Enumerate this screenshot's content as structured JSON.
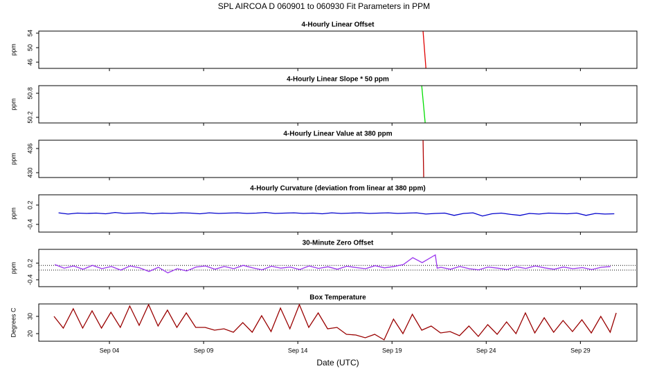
{
  "title": "SPL   AIRCOA D   060901 to 060930   Fit Parameters in PPM",
  "x_label": "Date (UTC)",
  "chart_data": [
    {
      "type": "line",
      "title": "4-Hourly Linear Offset",
      "y_label": "ppm",
      "xlim": [
        0.25,
        32.0
      ],
      "ylim": [
        44.29,
        54.57
      ],
      "yticks": [
        46,
        50,
        54
      ],
      "series": [
        {
          "color": "#e00000",
          "x": [
            20.65,
            20.8
          ],
          "values": [
            54.5,
            44.4
          ]
        }
      ]
    },
    {
      "type": "line",
      "title": "4-Hourly Linear Slope * 50 ppm",
      "y_label": "ppm",
      "xlim": [
        0.25,
        32.0
      ],
      "ylim": [
        50.06,
        50.99
      ],
      "yticks": [
        50.2,
        50.8
      ],
      "series": [
        {
          "color": "#00dd00",
          "x": [
            20.58,
            20.76
          ],
          "values": [
            50.98,
            50.07
          ]
        }
      ]
    },
    {
      "type": "line",
      "title": "4-Hourly Linear Value at 380 ppm",
      "y_label": "ppm",
      "xlim": [
        0.25,
        32.0
      ],
      "ylim": [
        428.8,
        438.06
      ],
      "yticks": [
        430,
        436
      ],
      "series": [
        {
          "color": "#b00000",
          "x": [
            20.65,
            20.68
          ],
          "values": [
            438,
            428.9
          ]
        }
      ]
    },
    {
      "type": "line",
      "title": "4-Hourly Curvature (deviation from linear at 380 ppm)",
      "y_label": "ppm",
      "xlim": [
        0.25,
        32.0
      ],
      "ylim": [
        -0.64,
        0.52
      ],
      "yticks": [
        -0.4,
        0.2
      ],
      "series": [
        {
          "color": "#0000cc",
          "x": [
            1.3,
            1.8,
            2.3,
            2.8,
            3.3,
            3.8,
            4.3,
            4.8,
            5.3,
            5.8,
            6.3,
            6.8,
            7.3,
            7.8,
            8.3,
            8.8,
            9.3,
            9.8,
            10.3,
            10.8,
            11.3,
            11.8,
            12.3,
            12.8,
            13.3,
            13.8,
            14.3,
            14.8,
            15.3,
            15.8,
            16.3,
            16.8,
            17.3,
            17.8,
            18.3,
            18.8,
            19.3,
            19.8,
            20.3,
            20.8,
            21.3,
            21.8,
            22.3,
            22.8,
            23.3,
            23.8,
            24.3,
            24.8,
            25.3,
            25.8,
            26.3,
            26.8,
            27.3,
            27.8,
            28.3,
            28.8,
            29.3,
            29.8,
            30.3,
            30.8
          ],
          "values": [
            -0.04,
            -0.08,
            -0.05,
            -0.06,
            -0.05,
            -0.07,
            -0.03,
            -0.06,
            -0.05,
            -0.04,
            -0.07,
            -0.05,
            -0.06,
            -0.04,
            -0.05,
            -0.07,
            -0.04,
            -0.06,
            -0.05,
            -0.04,
            -0.06,
            -0.05,
            -0.03,
            -0.06,
            -0.05,
            -0.04,
            -0.06,
            -0.05,
            -0.07,
            -0.04,
            -0.06,
            -0.05,
            -0.04,
            -0.06,
            -0.05,
            -0.04,
            -0.06,
            -0.05,
            -0.04,
            -0.08,
            -0.06,
            -0.05,
            -0.12,
            -0.06,
            -0.04,
            -0.14,
            -0.07,
            -0.05,
            -0.09,
            -0.12,
            -0.06,
            -0.08,
            -0.05,
            -0.06,
            -0.07,
            -0.05,
            -0.12,
            -0.06,
            -0.08,
            -0.07
          ]
        }
      ]
    },
    {
      "type": "line",
      "title": "30-Minute Zero Offset",
      "y_label": "ppm",
      "xlim": [
        0.25,
        32.0
      ],
      "ylim": [
        -0.65,
        0.7
      ],
      "yticks": [
        -0.4,
        0.2
      ],
      "hlines": [
        0.12,
        -0.05
      ],
      "series": [
        {
          "color": "#9933ee",
          "x": [
            1.1,
            1.6,
            2.1,
            2.6,
            3.1,
            3.6,
            4.1,
            4.6,
            5.1,
            5.6,
            6.1,
            6.6,
            7.1,
            7.6,
            8.1,
            8.6,
            9.1,
            9.6,
            10.1,
            10.6,
            11.1,
            11.6,
            12.1,
            12.6,
            13.1,
            13.6,
            14.1,
            14.6,
            15.1,
            15.6,
            16.1,
            16.6,
            17.1,
            17.6,
            18.1,
            18.6,
            19.1,
            19.6,
            20.1,
            20.6,
            21.3,
            21.4,
            21.6,
            22.1,
            22.6,
            23.1,
            23.6,
            24.1,
            24.6,
            25.1,
            25.6,
            26.1,
            26.6,
            27.1,
            27.6,
            28.1,
            28.6,
            29.1,
            29.6,
            30.1,
            30.6
          ],
          "values": [
            0.15,
            0.02,
            0.1,
            -0.02,
            0.12,
            0.0,
            0.08,
            -0.05,
            0.1,
            0.03,
            -0.1,
            0.05,
            -0.15,
            0.0,
            -0.08,
            0.06,
            0.1,
            -0.02,
            0.08,
            0.0,
            0.12,
            0.03,
            -0.04,
            0.09,
            0.02,
            0.06,
            -0.03,
            0.1,
            0.01,
            0.07,
            -0.02,
            0.09,
            0.04,
            0.0,
            0.11,
            0.03,
            0.08,
            0.15,
            0.4,
            0.22,
            0.5,
            0.02,
            0.05,
            -0.02,
            0.08,
            0.0,
            -0.04,
            0.06,
            0.02,
            -0.03,
            0.07,
            0.01,
            0.1,
            0.03,
            -0.02,
            0.06,
            0.0,
            0.04,
            -0.03,
            0.05,
            0.08
          ]
        }
      ]
    },
    {
      "type": "line",
      "title": "Box Temperature",
      "y_label": "Degrees C",
      "xlim": [
        0.25,
        32.0
      ],
      "ylim": [
        15.6,
        37.2
      ],
      "yticks": [
        20,
        30
      ],
      "xticks": [
        {
          "value": 4,
          "label": "Sep 04"
        },
        {
          "value": 9,
          "label": "Sep 09"
        },
        {
          "value": 14,
          "label": "Sep 14"
        },
        {
          "value": 19,
          "label": "Sep 19"
        },
        {
          "value": 24,
          "label": "Sep 24"
        },
        {
          "value": 29,
          "label": "Sep 29"
        }
      ],
      "series": [
        {
          "color": "#990000",
          "x": [
            1.06,
            1.55,
            2.08,
            2.58,
            3.08,
            3.58,
            4.08,
            4.58,
            5.08,
            5.58,
            6.08,
            6.58,
            7.08,
            7.58,
            8.08,
            8.58,
            9.08,
            9.58,
            10.08,
            10.58,
            11.08,
            11.58,
            12.08,
            12.58,
            13.08,
            13.58,
            14.08,
            14.58,
            15.08,
            15.58,
            16.08,
            16.58,
            17.08,
            17.58,
            18.08,
            18.58,
            19.08,
            19.58,
            20.08,
            20.58,
            21.08,
            21.58,
            22.08,
            22.58,
            23.08,
            23.58,
            24.08,
            24.58,
            25.08,
            25.58,
            26.08,
            26.58,
            27.08,
            27.58,
            28.08,
            28.58,
            29.08,
            29.58,
            30.08,
            30.58,
            30.9
          ],
          "values": [
            30,
            23.2,
            34.4,
            23.2,
            33.2,
            23.2,
            32.4,
            23.6,
            36,
            24.8,
            36.8,
            24.4,
            33.6,
            23.6,
            32,
            23.6,
            23.6,
            22,
            22.8,
            20.8,
            26.4,
            20.8,
            30.4,
            21.2,
            34.8,
            22.8,
            36.8,
            23.6,
            32,
            22.8,
            23.6,
            19.6,
            19.2,
            17.6,
            19.6,
            16.4,
            28.4,
            20,
            31.2,
            22,
            24.4,
            20.4,
            21.2,
            18.8,
            24.4,
            18.4,
            25.2,
            19.6,
            26.8,
            20,
            32,
            20.4,
            29.2,
            20.8,
            27.6,
            21.2,
            28,
            20.4,
            30,
            20.8,
            32
          ]
        }
      ]
    }
  ]
}
